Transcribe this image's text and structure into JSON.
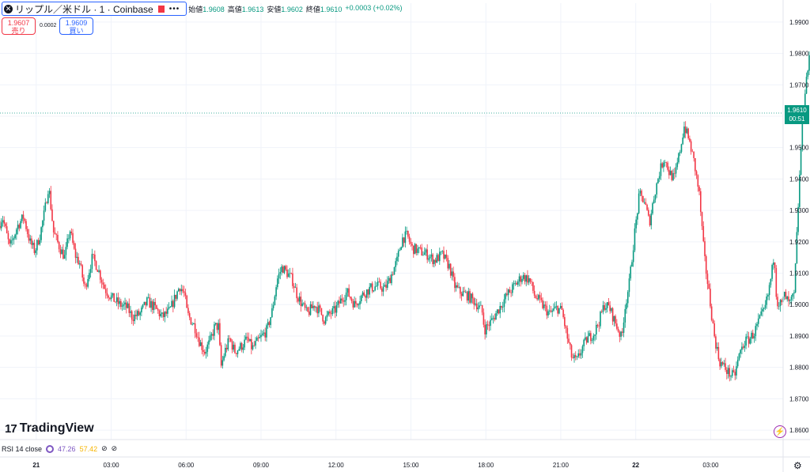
{
  "header": {
    "symbol_title": "リップル／米ドル · 1 · Coinbase",
    "more_label": "•••",
    "open_label": "始値",
    "open_value": "1.9608",
    "high_label": "高値",
    "high_value": "1.9613",
    "low_label": "安値",
    "low_value": "1.9602",
    "close_label": "終値",
    "close_value": "1.9610",
    "change": "+0.0003 (+0.02%)"
  },
  "trade": {
    "sell_price": "1.9607",
    "sell_label": "売り",
    "spread": "0.0002",
    "buy_price": "1.9609",
    "buy_label": "買い"
  },
  "last_price": {
    "price": "1.9610",
    "countdown": "00:51"
  },
  "brand": "TradingView",
  "rsi": {
    "label": "RSI 14 close",
    "value1": "47.26",
    "value2": "57.42",
    "extra1": "⊘",
    "extra2": "⊘"
  },
  "colors": {
    "up": "#089981",
    "down": "#f23645",
    "grid": "#f0f3fa",
    "accent": "#2962ff"
  },
  "chart_data": {
    "type": "candlestick",
    "title": "",
    "y_ticks": [
      1.86,
      1.87,
      1.88,
      1.89,
      1.9,
      1.91,
      1.92,
      1.93,
      1.94,
      1.95,
      1.96,
      1.97,
      1.98,
      1.99
    ],
    "y_tick_labels": [
      "1.8600",
      "1.8700",
      "1.8800",
      "1.8900",
      "1.9000",
      "1.9100",
      "1.9200",
      "1.9300",
      "1.9400",
      "1.9500",
      "1.9600",
      "1.9700",
      "1.9800",
      "1.9900"
    ],
    "ylim": [
      1.857,
      1.996
    ],
    "x_ticks": [
      "21",
      "03:00",
      "06:00",
      "09:00",
      "12:00",
      "15:00",
      "18:00",
      "21:00",
      "22",
      "03:00"
    ],
    "x_tick_hours": [
      0,
      3,
      6,
      9,
      12,
      15,
      18,
      21,
      24,
      27
    ],
    "xlim_hours": [
      -1.45,
      29.9
    ],
    "last_close": 1.961,
    "price_path": [
      [
        -1.45,
        1.925
      ],
      [
        -1.3,
        1.928
      ],
      [
        -1.0,
        1.918
      ],
      [
        -0.7,
        1.925
      ],
      [
        -0.45,
        1.928
      ],
      [
        -0.2,
        1.92
      ],
      [
        0.0,
        1.917
      ],
      [
        0.2,
        1.922
      ],
      [
        0.4,
        1.93
      ],
      [
        0.55,
        1.938
      ],
      [
        0.75,
        1.923
      ],
      [
        1.0,
        1.918
      ],
      [
        1.2,
        1.915
      ],
      [
        1.4,
        1.924
      ],
      [
        1.6,
        1.916
      ],
      [
        1.8,
        1.913
      ],
      [
        2.0,
        1.905
      ],
      [
        2.3,
        1.915
      ],
      [
        2.5,
        1.912
      ],
      [
        2.8,
        1.905
      ],
      [
        3.1,
        1.902
      ],
      [
        3.4,
        1.9
      ],
      [
        3.7,
        1.899
      ],
      [
        3.9,
        1.896
      ],
      [
        4.2,
        1.897
      ],
      [
        4.5,
        1.901
      ],
      [
        4.8,
        1.899
      ],
      [
        5.1,
        1.896
      ],
      [
        5.4,
        1.898
      ],
      [
        5.6,
        1.902
      ],
      [
        5.8,
        1.906
      ],
      [
        6.0,
        1.903
      ],
      [
        6.1,
        1.897
      ],
      [
        6.4,
        1.893
      ],
      [
        6.6,
        1.888
      ],
      [
        6.8,
        1.885
      ],
      [
        7.0,
        1.888
      ],
      [
        7.2,
        1.893
      ],
      [
        7.35,
        1.893
      ],
      [
        7.45,
        1.88
      ],
      [
        7.6,
        1.885
      ],
      [
        7.8,
        1.889
      ],
      [
        8.0,
        1.885
      ],
      [
        8.3,
        1.887
      ],
      [
        8.5,
        1.889
      ],
      [
        8.7,
        1.886
      ],
      [
        9.0,
        1.889
      ],
      [
        9.3,
        1.892
      ],
      [
        9.5,
        1.898
      ],
      [
        9.7,
        1.908
      ],
      [
        9.9,
        1.912
      ],
      [
        10.1,
        1.91
      ],
      [
        10.3,
        1.908
      ],
      [
        10.5,
        1.903
      ],
      [
        10.7,
        1.9
      ],
      [
        10.9,
        1.897
      ],
      [
        11.2,
        1.9
      ],
      [
        11.4,
        1.898
      ],
      [
        11.6,
        1.895
      ],
      [
        11.8,
        1.897
      ],
      [
        12.0,
        1.898
      ],
      [
        12.3,
        1.902
      ],
      [
        12.5,
        1.904
      ],
      [
        12.8,
        1.9
      ],
      [
        13.1,
        1.903
      ],
      [
        13.4,
        1.905
      ],
      [
        13.7,
        1.906
      ],
      [
        14.0,
        1.905
      ],
      [
        14.2,
        1.908
      ],
      [
        14.5,
        1.914
      ],
      [
        14.7,
        1.921
      ],
      [
        14.9,
        1.922
      ],
      [
        15.1,
        1.918
      ],
      [
        15.4,
        1.917
      ],
      [
        15.7,
        1.916
      ],
      [
        16.0,
        1.914
      ],
      [
        16.3,
        1.916
      ],
      [
        16.6,
        1.912
      ],
      [
        16.8,
        1.906
      ],
      [
        17.0,
        1.904
      ],
      [
        17.3,
        1.903
      ],
      [
        17.6,
        1.901
      ],
      [
        17.9,
        1.898
      ],
      [
        18.0,
        1.892
      ],
      [
        18.3,
        1.895
      ],
      [
        18.6,
        1.899
      ],
      [
        18.9,
        1.903
      ],
      [
        19.2,
        1.906
      ],
      [
        19.5,
        1.909
      ],
      [
        19.8,
        1.908
      ],
      [
        20.0,
        1.903
      ],
      [
        20.3,
        1.9
      ],
      [
        20.6,
        1.897
      ],
      [
        20.9,
        1.899
      ],
      [
        21.1,
        1.898
      ],
      [
        21.3,
        1.89
      ],
      [
        21.5,
        1.883
      ],
      [
        21.7,
        1.882
      ],
      [
        21.9,
        1.886
      ],
      [
        22.1,
        1.889
      ],
      [
        22.4,
        1.891
      ],
      [
        22.6,
        1.895
      ],
      [
        22.8,
        1.9
      ],
      [
        23.0,
        1.899
      ],
      [
        23.3,
        1.893
      ],
      [
        23.5,
        1.889
      ],
      [
        23.6,
        1.898
      ],
      [
        23.8,
        1.907
      ],
      [
        24.0,
        1.922
      ],
      [
        24.2,
        1.935
      ],
      [
        24.4,
        1.933
      ],
      [
        24.6,
        1.926
      ],
      [
        24.8,
        1.935
      ],
      [
        25.0,
        1.942
      ],
      [
        25.2,
        1.947
      ],
      [
        25.4,
        1.942
      ],
      [
        25.6,
        1.94
      ],
      [
        25.8,
        1.948
      ],
      [
        26.0,
        1.957
      ],
      [
        26.2,
        1.952
      ],
      [
        26.4,
        1.945
      ],
      [
        26.6,
        1.935
      ],
      [
        26.8,
        1.915
      ],
      [
        27.0,
        1.903
      ],
      [
        27.2,
        1.89
      ],
      [
        27.4,
        1.882
      ],
      [
        27.6,
        1.88
      ],
      [
        27.8,
        1.878
      ],
      [
        28.0,
        1.877
      ],
      [
        28.2,
        1.884
      ],
      [
        28.4,
        1.888
      ],
      [
        28.6,
        1.889
      ],
      [
        28.8,
        1.891
      ],
      [
        29.0,
        1.895
      ],
      [
        29.2,
        1.898
      ],
      [
        29.35,
        1.903
      ],
      [
        29.5,
        1.91
      ],
      [
        29.6,
        1.917
      ],
      [
        29.7,
        1.901
      ],
      [
        29.9,
        1.9
      ],
      [
        30.0,
        1.903
      ],
      [
        30.2,
        1.9
      ],
      [
        30.4,
        1.903
      ],
      [
        30.55,
        1.93
      ],
      [
        30.7,
        1.955
      ],
      [
        30.85,
        1.97
      ],
      [
        31.0,
        1.978
      ],
      [
        31.15,
        1.974
      ],
      [
        31.3,
        1.968
      ],
      [
        31.45,
        1.963
      ],
      [
        31.55,
        1.961
      ]
    ]
  }
}
